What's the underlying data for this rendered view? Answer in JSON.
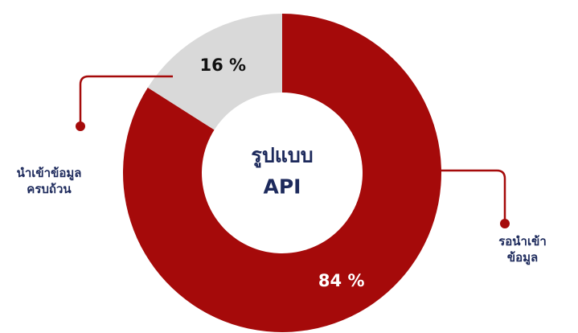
{
  "chart_data": {
    "type": "pie",
    "hole": true,
    "title": "รูปแบบ\nAPI",
    "categories": [
      "รอนำเข้าข้อมูล",
      "นำเข้าข้อมูล\nครบถ้วน"
    ],
    "values": [
      84,
      16
    ],
    "value_labels": [
      "84 %",
      "16 %"
    ],
    "colors": [
      "#a50a0a",
      "#d9d9d9"
    ],
    "value_label_colors": [
      "#ffffff",
      "#111111"
    ]
  }
}
